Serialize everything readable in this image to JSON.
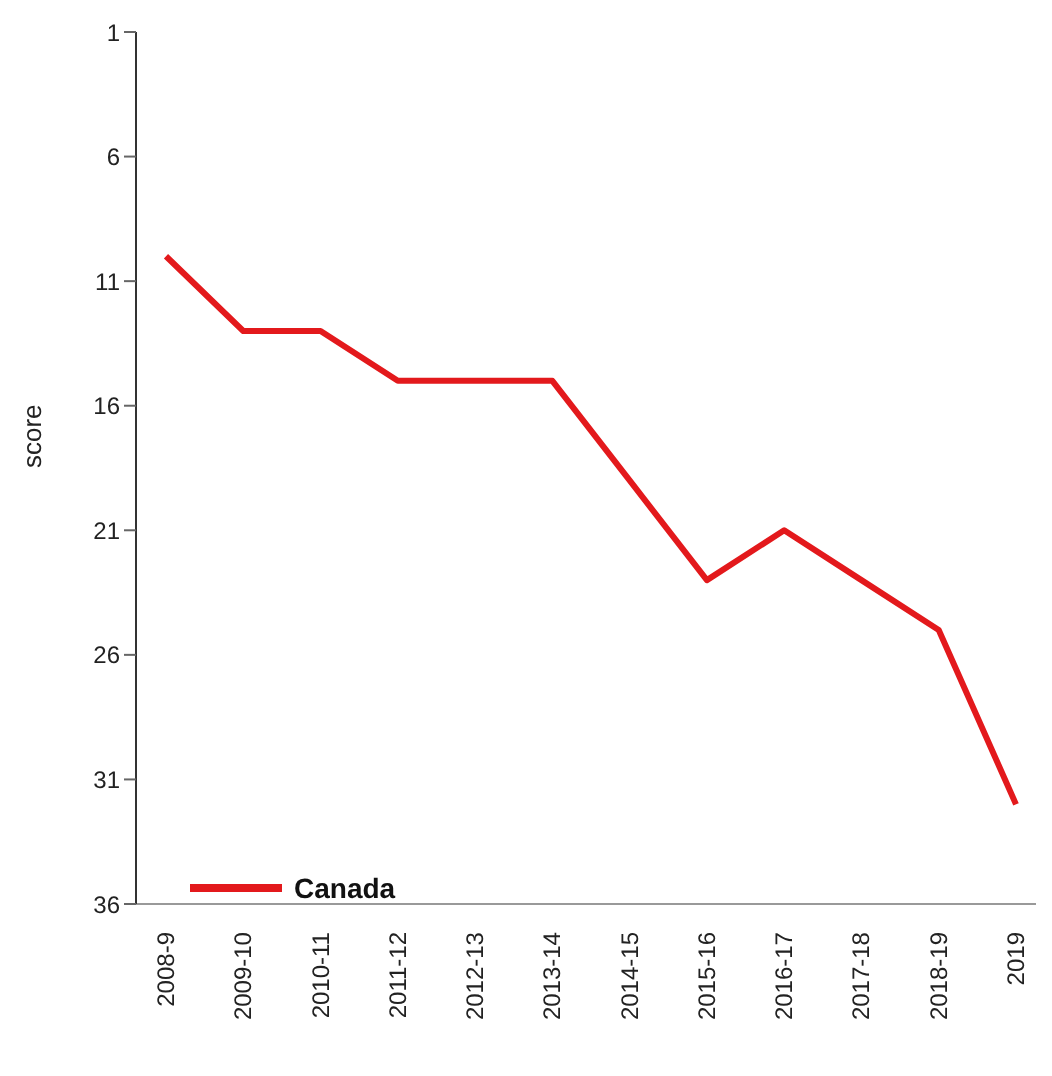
{
  "chart_data": {
    "type": "line",
    "ylabel": "score",
    "categories": [
      "2008-9",
      "2009-10",
      "2010-11",
      "2011-12",
      "2012-13",
      "2013-14",
      "2014-15",
      "2015-16",
      "2016-17",
      "2017-18",
      "2018-19",
      "2019"
    ],
    "series": [
      {
        "name": "Canada",
        "color": "#e3191c",
        "values": [
          10,
          13,
          13,
          15,
          15,
          15,
          19,
          23,
          21,
          23,
          25,
          32
        ]
      }
    ],
    "ylim": [
      36,
      1
    ],
    "yticks": [
      1,
      6,
      11,
      16,
      21,
      26,
      31,
      36
    ],
    "grid": false,
    "legend": "bottom left",
    "marker": "none",
    "line_style": "solid"
  }
}
